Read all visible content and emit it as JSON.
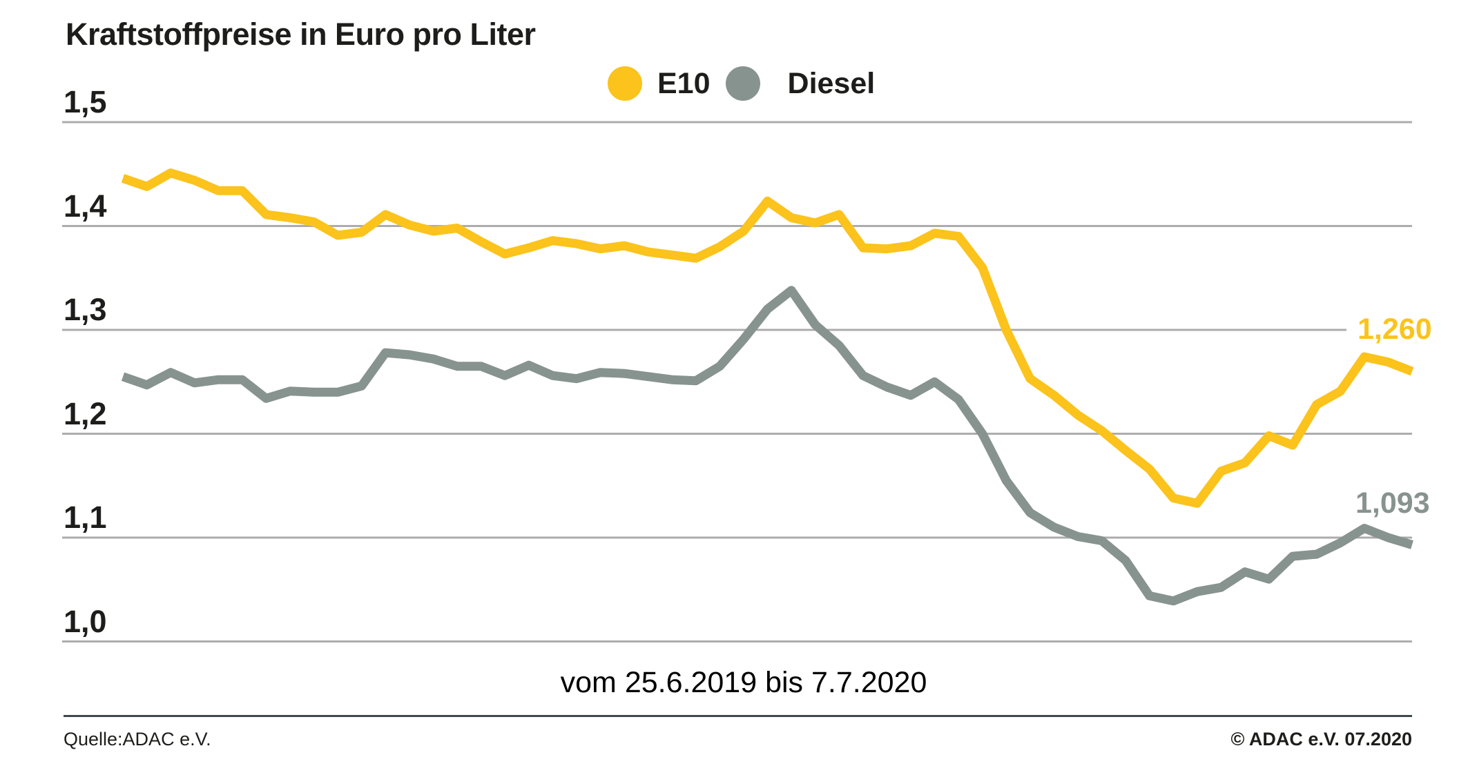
{
  "header": {
    "title": "Kraftstoffpreise in Euro pro Liter"
  },
  "legend": {
    "e10_label": "E10",
    "diesel_label": "Diesel"
  },
  "footer": {
    "source": "Quelle:ADAC e.V.",
    "copyright": "© ADAC e.V. 07.2020"
  },
  "colors": {
    "e10_yellow": "#FBC31B",
    "diesel_gray": "#87938E",
    "gridline": "#ACACAC",
    "footer_rule": "#3E484B",
    "text": "#1D1D1B",
    "background": "#FFFFFF"
  },
  "chart_data": {
    "type": "line",
    "title": "Kraftstoffpreise in Euro pro Liter",
    "xlabel": "vom 25.6.2019 bis 7.7.2020",
    "x_start": "25.6.2019",
    "x_end": "7.7.2020",
    "x_interval": "weekly",
    "ylim": [
      1.0,
      1.5
    ],
    "grid": true,
    "legend_position": "top-center",
    "yticks": [
      {
        "label": "1,5",
        "value": 1.5
      },
      {
        "label": "1,4",
        "value": 1.4
      },
      {
        "label": "1,3",
        "value": 1.3
      },
      {
        "label": "1,2",
        "value": 1.2
      },
      {
        "label": "1,1",
        "value": 1.1
      },
      {
        "label": "1,0",
        "value": 1.0
      }
    ],
    "series": [
      {
        "name": "E10",
        "color": "#FBC31B",
        "end_label": "1,260",
        "final_value": 1.26,
        "values": [
          1.446,
          1.438,
          1.451,
          1.444,
          1.434,
          1.434,
          1.411,
          1.408,
          1.404,
          1.391,
          1.394,
          1.411,
          1.401,
          1.395,
          1.398,
          1.385,
          1.373,
          1.379,
          1.386,
          1.383,
          1.378,
          1.381,
          1.375,
          1.372,
          1.369,
          1.38,
          1.395,
          1.424,
          1.408,
          1.403,
          1.411,
          1.379,
          1.378,
          1.381,
          1.393,
          1.39,
          1.36,
          1.3,
          1.253,
          1.237,
          1.218,
          1.203,
          1.184,
          1.166,
          1.138,
          1.133,
          1.164,
          1.172,
          1.198,
          1.189,
          1.228,
          1.241,
          1.274,
          1.269,
          1.26
        ]
      },
      {
        "name": "Diesel",
        "color": "#87938E",
        "end_label": "1,093",
        "final_value": 1.093,
        "values": [
          1.255,
          1.247,
          1.259,
          1.249,
          1.252,
          1.252,
          1.234,
          1.241,
          1.24,
          1.24,
          1.246,
          1.278,
          1.276,
          1.272,
          1.265,
          1.265,
          1.256,
          1.266,
          1.256,
          1.253,
          1.259,
          1.258,
          1.255,
          1.252,
          1.251,
          1.265,
          1.291,
          1.32,
          1.338,
          1.305,
          1.285,
          1.256,
          1.245,
          1.237,
          1.25,
          1.233,
          1.2,
          1.155,
          1.124,
          1.11,
          1.101,
          1.097,
          1.078,
          1.044,
          1.039,
          1.048,
          1.052,
          1.067,
          1.06,
          1.082,
          1.084,
          1.095,
          1.109,
          1.1,
          1.093
        ]
      }
    ]
  }
}
